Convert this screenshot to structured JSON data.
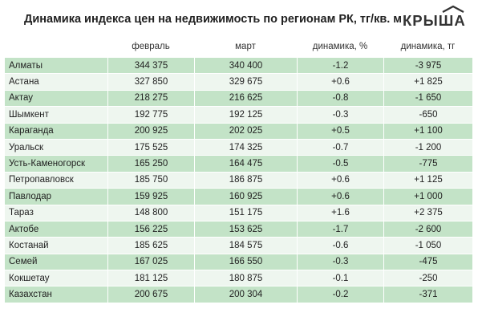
{
  "title": "Динамика индекса цен на недвижимость по регионам РК, тг/кв. м",
  "logo": {
    "text": "КРЫША",
    "icon": "roof-icon"
  },
  "table": {
    "headers": [
      "",
      "февраль",
      "март",
      "динамика, %",
      "динамика, тг"
    ],
    "rows": [
      [
        "Алматы",
        "344 375",
        "340 400",
        "-1.2",
        "-3 975"
      ],
      [
        "Астана",
        "327 850",
        "329 675",
        "+0.6",
        "+1 825"
      ],
      [
        "Актау",
        "218 275",
        "216 625",
        "-0.8",
        "-1 650"
      ],
      [
        "Шымкент",
        "192 775",
        "192 125",
        "-0.3",
        "-650"
      ],
      [
        "Караганда",
        "200 925",
        "202 025",
        "+0.5",
        "+1 100"
      ],
      [
        "Уральск",
        "175 525",
        "174 325",
        "-0.7",
        "-1 200"
      ],
      [
        "Усть-Каменогорск",
        "165 250",
        "164 475",
        "-0.5",
        "-775"
      ],
      [
        "Петропавловск",
        "185 750",
        "186 875",
        "+0.6",
        "+1 125"
      ],
      [
        "Павлодар",
        "159 925",
        "160 925",
        "+0.6",
        "+1 000"
      ],
      [
        "Тараз",
        "148 800",
        "151 175",
        "+1.6",
        "+2 375"
      ],
      [
        "Актобе",
        "156 225",
        "153 625",
        "-1.7",
        "-2 600"
      ],
      [
        "Костанай",
        "185 625",
        "184 575",
        "-0.6",
        "-1 050"
      ],
      [
        "Семей",
        "167 025",
        "166 550",
        "-0.3",
        "-475"
      ],
      [
        "Кокшетау",
        "181 125",
        "180 875",
        "-0.1",
        "-250"
      ],
      [
        "Казахстан",
        "200 675",
        "200  304",
        "-0.2",
        "-371"
      ]
    ]
  },
  "colors": {
    "row_alt": "#c3e3c7",
    "row_plain": "#eef6ef",
    "text": "#222222"
  }
}
